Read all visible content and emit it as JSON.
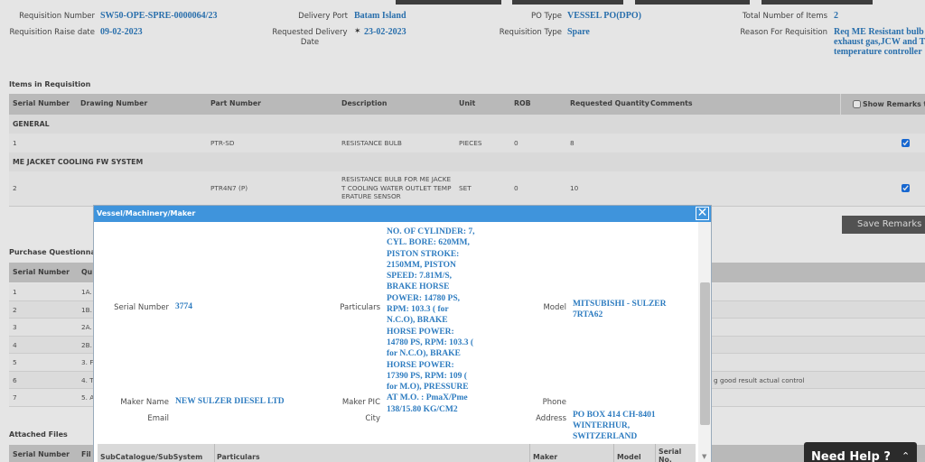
{
  "summary": {
    "fields": [
      {
        "label": "Requisition Number",
        "value": "SW50-OPE-SPRE-0000064/23"
      },
      {
        "label": "Delivery Port",
        "value": "Batam Island"
      },
      {
        "label": "PO Type",
        "value": "VESSEL PO(DPO)"
      },
      {
        "label": "Total Number of Items",
        "value": "2"
      },
      {
        "label": "Requisition Raise date",
        "value": "09-02-2023"
      },
      {
        "label": "Requested Delivery Date",
        "value": "23-02-2023"
      },
      {
        "label": "Requisition Type",
        "value": "Spare"
      },
      {
        "label": "Reason For Requisition",
        "value": [
          "Req ME Resistant bulb",
          "exhaust gas,JCW and T",
          "temperature controller"
        ]
      }
    ]
  },
  "items": {
    "title": "Items in Requisition",
    "columns": [
      "Serial Number",
      "Drawing Number",
      "Part Number",
      "Description",
      "Unit",
      "ROB",
      "Requested Quantity",
      "Comments"
    ],
    "show_remarks": "Show Remarks to",
    "groups": [
      {
        "name": "GENERAL",
        "rows": [
          {
            "serial": "1",
            "part_number": "PTR-SD",
            "description": "RESISTANCE BULB",
            "unit": "PIECES",
            "rob": "0",
            "quantity": "8"
          }
        ]
      },
      {
        "name": "ME JACKET COOLING FW SYSTEM",
        "rows": [
          {
            "serial": "2",
            "part_number": "PTR4N7 (P)",
            "description": "RESISTANCE BULB FOR ME JACKET COOLING WATER OUTLET TEMPERATURE SENSOR",
            "unit": "SET",
            "rob": "0",
            "quantity": "10"
          }
        ]
      }
    ],
    "save_button": "Save Remarks S"
  },
  "questionnaire": {
    "title": "Purchase Questionnai",
    "columns": [
      "Serial Number",
      "Qu"
    ],
    "rows": [
      {
        "serial": "1",
        "question": "1A."
      },
      {
        "serial": "2",
        "question": "1B."
      },
      {
        "serial": "3",
        "question": "2A."
      },
      {
        "serial": "4",
        "question": "2B."
      },
      {
        "serial": "5",
        "question": "3. F"
      },
      {
        "serial": "6",
        "question": "4. T",
        "answer": "g good result actual control"
      },
      {
        "serial": "7",
        "question": "5. A"
      }
    ]
  },
  "attached_files": {
    "title": "Attached Files",
    "columns": [
      "Serial Number",
      "Fil"
    ]
  },
  "help_button": "Need Help ?",
  "modal": {
    "title": "Vessel/Machinery/Maker",
    "fields": [
      {
        "label": "Serial Number",
        "value": "3774"
      },
      {
        "label": "Particulars",
        "value": "NO. OF CYLINDER: 7, CYL. BORE: 620MM, PISTON STROKE: 2150MM, PISTON SPEED: 7.81M/S, BRAKE HORSE POWER: 14780 PS, RPM: 103.3 ( for N.C.O), BRAKE HORSE POWER: 14780 PS, RPM: 103.3 ( for N.C.O), BRAKE HORSE POWER: 17390 PS, RPM: 109 ( for M.O), PRESSURE AT M.O. : PmaX/Pme 138/15.80 KG/CM2"
      },
      {
        "label": "Model",
        "value": "MITSUBISHI - SULZER 7RTA62"
      },
      {
        "label": "Maker Name",
        "value": "NEW SULZER DIESEL LTD"
      },
      {
        "label": "Maker PIC"
      },
      {
        "label": "Phone"
      },
      {
        "label": "Email"
      },
      {
        "label": "City"
      },
      {
        "label": "Address",
        "value": "PO BOX 414 CH-8401 WINTERHUR, SWITZERLAND"
      }
    ],
    "sub_columns": [
      "SubCatalogue/SubSystem",
      "Particulars",
      "Maker",
      "Model",
      "Serial No."
    ]
  }
}
